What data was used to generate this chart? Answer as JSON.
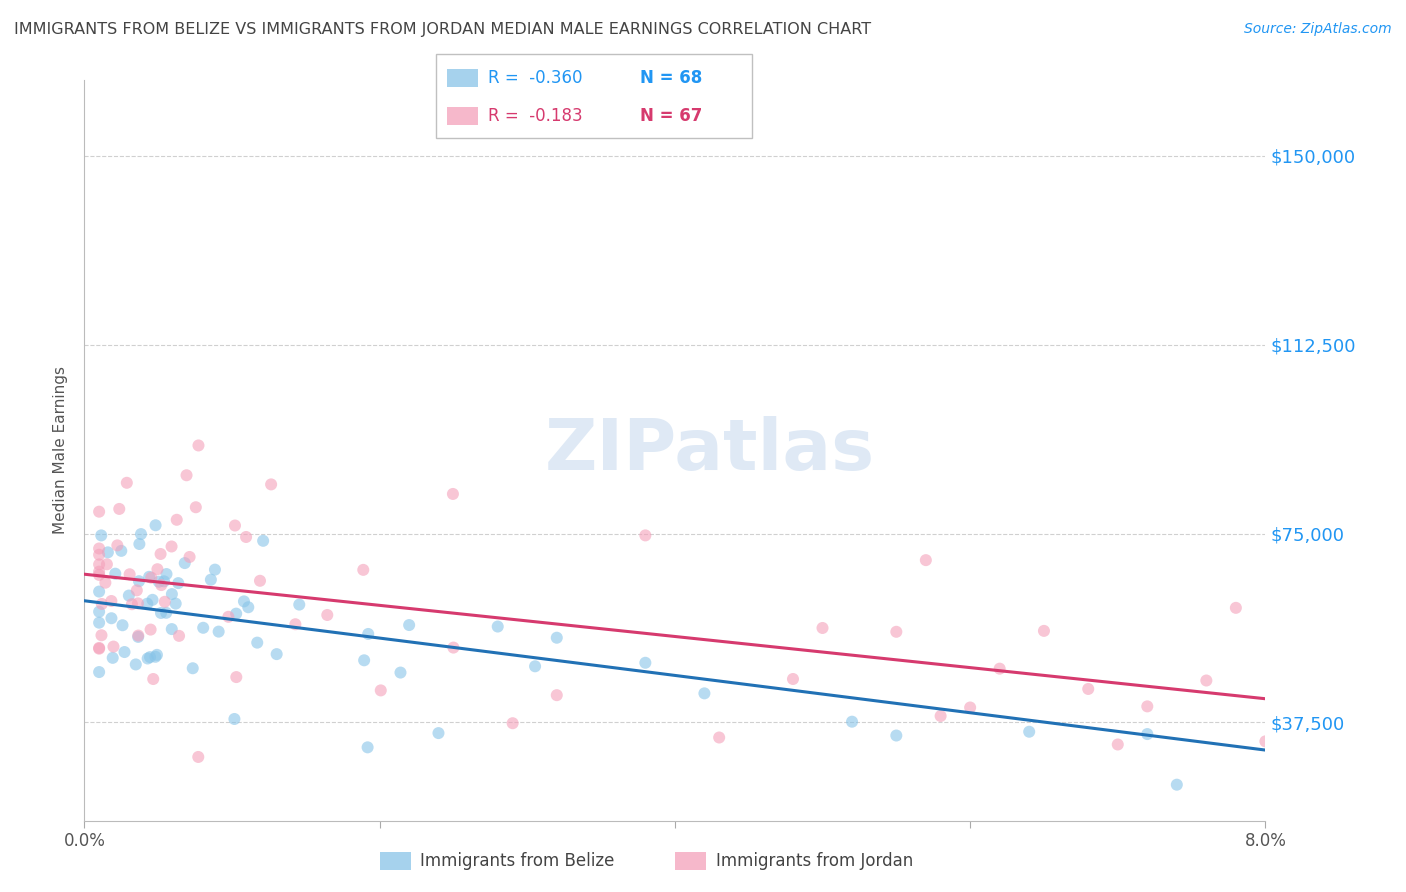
{
  "title": "IMMIGRANTS FROM BELIZE VS IMMIGRANTS FROM JORDAN MEDIAN MALE EARNINGS CORRELATION CHART",
  "source": "Source: ZipAtlas.com",
  "ylabel": "Median Male Earnings",
  "ytick_labels": [
    "$37,500",
    "$75,000",
    "$112,500",
    "$150,000"
  ],
  "ytick_values": [
    37500,
    75000,
    112500,
    150000
  ],
  "ymin": 18000,
  "ymax": 165000,
  "xmin": 0.0,
  "xmax": 0.08,
  "color_belize": "#88c4e8",
  "color_jordan": "#f4a0ba",
  "color_belize_line": "#2171b5",
  "color_jordan_line": "#d63a6e",
  "belize_R": -0.36,
  "belize_N": 68,
  "jordan_R": -0.183,
  "jordan_N": 67,
  "watermark": "ZIPatlas",
  "background_color": "#ffffff",
  "grid_color": "#d0d0d0",
  "axis_label_color": "#2196F3",
  "title_color": "#444444",
  "legend_R_belize": "R =  -0.360",
  "legend_N_belize": "N = 68",
  "legend_R_jordan": "R =  -0.183",
  "legend_N_jordan": "N = 67",
  "label_belize": "Immigrants from Belize",
  "label_jordan": "Immigrants from Jordan"
}
